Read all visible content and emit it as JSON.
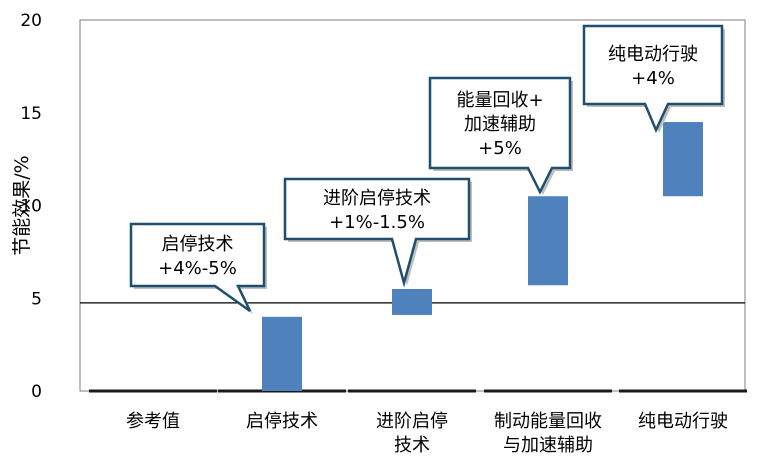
{
  "chart_data": {
    "type": "bar",
    "subtype": "floating-range",
    "categories": [
      {
        "id": "ref",
        "lines": [
          "参考值"
        ]
      },
      {
        "id": "ss",
        "lines": [
          "启停技术"
        ]
      },
      {
        "id": "adv",
        "lines": [
          "进阶启停",
          "技术"
        ]
      },
      {
        "id": "regen",
        "lines": [
          "制动能量回收",
          "与加速辅助"
        ]
      },
      {
        "id": "ev",
        "lines": [
          "纯电动行驶"
        ]
      }
    ],
    "ranges": [
      null,
      [
        0,
        4
      ],
      [
        4.1,
        5.5
      ],
      [
        5.7,
        10.5
      ],
      [
        10.5,
        14.5
      ]
    ],
    "reference_line": 4.75,
    "ylabel": "节能效果/%",
    "ylim": [
      0,
      20
    ],
    "yticks": [
      0,
      5,
      10,
      15,
      20
    ],
    "bar_color": "#4f81bd",
    "grid": false,
    "annotations": [
      {
        "target": "ss",
        "lines": [
          "启停技术",
          "+4%-5%"
        ]
      },
      {
        "target": "adv",
        "lines": [
          "进阶启停技术",
          "+1%-1.5%"
        ]
      },
      {
        "target": "regen",
        "lines": [
          "能量回收+",
          "加速辅助",
          "+5%"
        ]
      },
      {
        "target": "ev",
        "lines": [
          "纯电动行驶",
          "+4%"
        ]
      }
    ]
  }
}
